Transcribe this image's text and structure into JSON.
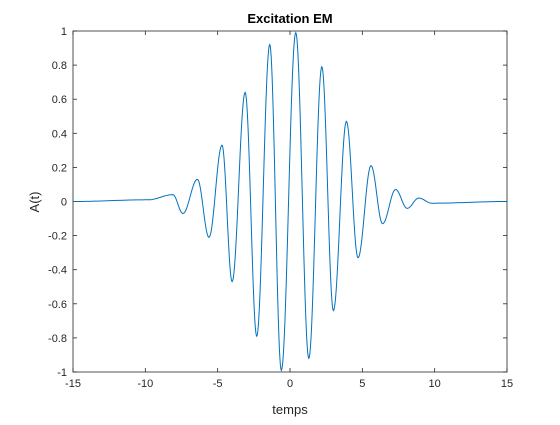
{
  "chart_data": {
    "type": "line",
    "title": "Excitation EM",
    "xlabel": "temps",
    "ylabel": "A(t)",
    "xlim": [
      -15,
      15
    ],
    "ylim": [
      -1,
      1
    ],
    "xticks": [
      -15,
      -10,
      -5,
      0,
      5,
      10,
      15
    ],
    "yticks": [
      -1,
      -0.8,
      -0.6,
      -0.4,
      -0.2,
      0,
      0.2,
      0.4,
      0.6,
      0.8,
      1
    ],
    "xtick_labels": [
      "-15",
      "-10",
      "-5",
      "0",
      "5",
      "10",
      "15"
    ],
    "ytick_labels": [
      "-1",
      "-0.8",
      "-0.6",
      "-0.4",
      "-0.2",
      "0",
      "0.2",
      "0.4",
      "0.6",
      "0.8",
      "1"
    ],
    "grid": false,
    "series": [
      {
        "color": "#0072BD",
        "x": [
          -15,
          -9.8,
          -8.1,
          -7.4,
          -6.4,
          -5.6,
          -4.7,
          -4.0,
          -3.1,
          -2.3,
          -1.4,
          -0.6,
          0.4,
          1.3,
          2.2,
          3.0,
          3.9,
          4.7,
          5.6,
          6.4,
          7.3,
          8.1,
          8.9,
          9.8,
          15
        ],
        "y": [
          0,
          0.01,
          0.04,
          -0.07,
          0.13,
          -0.21,
          0.33,
          -0.47,
          0.64,
          -0.79,
          0.92,
          -0.99,
          0.99,
          -0.92,
          0.79,
          -0.64,
          0.47,
          -0.33,
          0.21,
          -0.13,
          0.07,
          -0.04,
          0.02,
          -0.01,
          0
        ]
      }
    ]
  }
}
